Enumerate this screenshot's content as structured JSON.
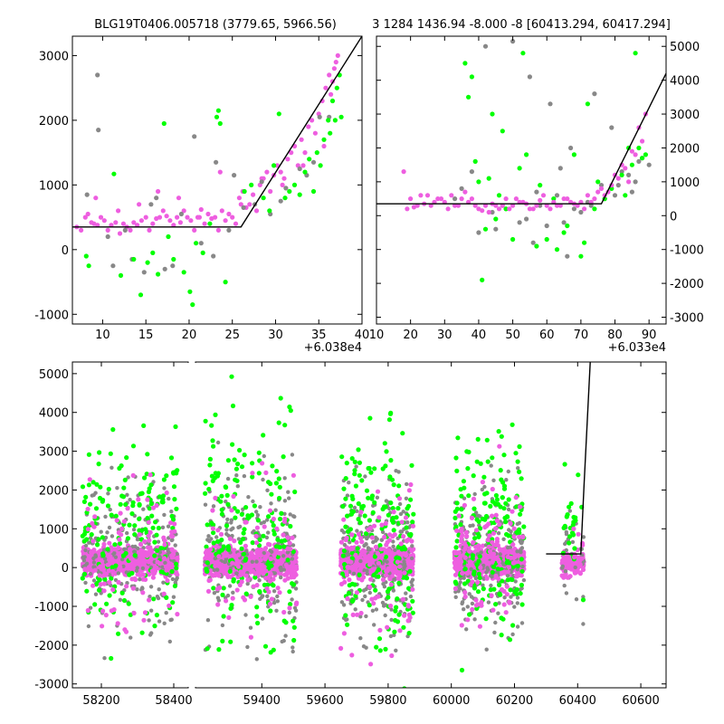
{
  "titles": {
    "left": "BLG19T0406.005718 (3779.65, 5966.56)",
    "right": "3 1284 1436.94 -8.000 -8 [60413.294, 60417.294]"
  },
  "colors": {
    "background": "#ffffff",
    "gray": "#888888",
    "green": "#00ff00",
    "magenta": "#ee5ee0",
    "model_line": "#000000"
  },
  "chart_data": [
    {
      "id": "top-left",
      "type": "scatter",
      "title": "BLG19T0406.005718 (3779.65, 5966.56)",
      "x_offset_label": "+6.038e4",
      "xlim": [
        6.5,
        40
      ],
      "ylim": [
        -1150,
        3300
      ],
      "xticks": [
        10,
        15,
        20,
        25,
        30,
        35,
        40
      ],
      "yticks": [
        -1000,
        0,
        1000,
        2000,
        3000
      ],
      "y_axis_side": "left",
      "model_line": {
        "x": [
          6.5,
          26,
          40
        ],
        "y": [
          350,
          350,
          3300
        ]
      },
      "series": [
        {
          "color_key": "magenta",
          "x": [
            7,
            7.5,
            8,
            8.3,
            8.7,
            9,
            9.4,
            9.8,
            10.2,
            10.6,
            11,
            11.5,
            12,
            12.4,
            12.8,
            13.2,
            13.6,
            14,
            14.5,
            15,
            15.4,
            15.8,
            16.2,
            16.6,
            17,
            17.4,
            17.8,
            18.2,
            18.6,
            19,
            19.4,
            19.8,
            20.2,
            20.6,
            21,
            21.4,
            21.8,
            22.2,
            22.6,
            23,
            23.4,
            23.8,
            24.2,
            24.6,
            25,
            25.4,
            25.8,
            26.2,
            26.6,
            27,
            27.4,
            27.8,
            28.2,
            28.6,
            29,
            29.4,
            29.8,
            30.2,
            30.6,
            31,
            31.4,
            31.8,
            32.2,
            32.6,
            33,
            33.4,
            33.8,
            34.2,
            34.6,
            35,
            35.4,
            35.8,
            36.2,
            36.6,
            37,
            9.2,
            11.8,
            14.2,
            16.4,
            18.8,
            21.2,
            23.6,
            26,
            28.4,
            30.8,
            33.2,
            35.6,
            36.8,
            37.2,
            36.4
          ],
          "y": [
            350,
            300,
            500,
            550,
            420,
            400,
            380,
            500,
            450,
            300,
            380,
            420,
            250,
            400,
            350,
            300,
            420,
            380,
            450,
            500,
            300,
            400,
            480,
            500,
            600,
            520,
            450,
            380,
            500,
            420,
            600,
            500,
            450,
            300,
            500,
            620,
            400,
            550,
            480,
            500,
            300,
            600,
            450,
            550,
            500,
            400,
            800,
            900,
            650,
            700,
            850,
            600,
            1000,
            1100,
            1200,
            900,
            1150,
            1300,
            1200,
            1100,
            1400,
            1500,
            1600,
            1300,
            1700,
            1500,
            1900,
            2000,
            1800,
            2100,
            2300,
            2500,
            2700,
            2600,
            2900,
            800,
            600,
            700,
            900,
            800,
            500,
            1200,
            700,
            1100,
            1000,
            1300,
            1600,
            2800,
            3000,
            2400
          ]
        },
        {
          "color_key": "gray",
          "x": [
            9.4,
            9.5,
            8.2,
            12.6,
            14.8,
            17.2,
            20.6,
            23.1,
            25.2,
            27.6,
            29.4,
            31.2,
            33.6,
            35.1,
            36.2,
            24.6,
            22.8,
            19.1,
            16.2,
            13.4,
            10.6,
            28.4,
            30.6,
            32.8,
            34.4,
            26.3,
            21.4,
            18.1,
            15.6,
            11.2
          ],
          "y": [
            2700,
            1850,
            850,
            300,
            -350,
            -300,
            1750,
            1350,
            1150,
            700,
            550,
            950,
            1150,
            2050,
            2050,
            300,
            -100,
            550,
            800,
            -150,
            200,
            1050,
            750,
            1250,
            1350,
            650,
            100,
            -250,
            700,
            -250
          ]
        },
        {
          "color_key": "green",
          "x": [
            8.1,
            8.4,
            11.3,
            12.1,
            13.6,
            14.4,
            15.2,
            15.8,
            16.4,
            17.1,
            17.6,
            18.2,
            19.4,
            20.1,
            20.4,
            20.8,
            21.6,
            22.4,
            23.2,
            23.4,
            23.6,
            24.2,
            26.4,
            27.2,
            28.6,
            29.3,
            29.8,
            30.4,
            31.1,
            31.6,
            32.2,
            32.8,
            33.4,
            33.9,
            34.4,
            34.8,
            35.2,
            35.6,
            36.1,
            36.6,
            37.1,
            37.4,
            37.6,
            36.9,
            36.3
          ],
          "y": [
            -100,
            -250,
            1170,
            -400,
            -150,
            -700,
            -200,
            -50,
            -380,
            1950,
            200,
            -150,
            -350,
            -650,
            -850,
            100,
            -50,
            400,
            2050,
            2150,
            1950,
            -500,
            900,
            1000,
            800,
            600,
            1300,
            2100,
            800,
            900,
            1000,
            850,
            1200,
            1400,
            900,
            1500,
            1300,
            1700,
            2000,
            2300,
            2500,
            2700,
            2050,
            2000,
            1800
          ]
        }
      ]
    },
    {
      "id": "top-right",
      "type": "scatter",
      "title": "3 1284 1436.94 -8.000 -8 [60413.294, 60417.294]",
      "x_offset_label": "+6.033e4",
      "xlim": [
        10,
        95
      ],
      "ylim": [
        -3200,
        5300
      ],
      "xticks": [
        10,
        20,
        30,
        40,
        50,
        60,
        70,
        80,
        90
      ],
      "yticks": [
        -3000,
        -2000,
        -1000,
        0,
        1000,
        2000,
        3000,
        4000,
        5000
      ],
      "y_axis_side": "right",
      "model_line": {
        "x": [
          10,
          76,
          95
        ],
        "y": [
          350,
          350,
          4200
        ]
      },
      "series": [
        {
          "color_key": "gray",
          "x": [
            42,
            50,
            55,
            61,
            64,
            67,
            74,
            79,
            85,
            38,
            45,
            52,
            58,
            63,
            70,
            76,
            82,
            88,
            33,
            48,
            56,
            66,
            72,
            80,
            86,
            90,
            35,
            44,
            54,
            60,
            68,
            77,
            84,
            40,
            47,
            57,
            65,
            73,
            81,
            87
          ],
          "y": [
            5000,
            5150,
            4100,
            3300,
            1400,
            2000,
            3600,
            2600,
            700,
            1300,
            -400,
            -200,
            300,
            600,
            100,
            900,
            1300,
            1700,
            500,
            200,
            -800,
            -1200,
            400,
            600,
            1000,
            1500,
            800,
            100,
            -100,
            -300,
            200,
            500,
            1200,
            -500,
            300,
            700,
            -200,
            300,
            900,
            1600
          ]
        },
        {
          "color_key": "green",
          "x": [
            36,
            37,
            38,
            40,
            41,
            43,
            44,
            46,
            48,
            50,
            53,
            54,
            57,
            60,
            63,
            65,
            68,
            70,
            72,
            75,
            77,
            79,
            82,
            84,
            86,
            87,
            88,
            89,
            85,
            83,
            42,
            45,
            52,
            62,
            66,
            71,
            58,
            47,
            39,
            74
          ],
          "y": [
            4500,
            3500,
            4100,
            1000,
            -1900,
            1100,
            3000,
            600,
            200,
            -700,
            4800,
            1800,
            -900,
            -700,
            -1000,
            -500,
            1800,
            -1200,
            3300,
            1000,
            500,
            800,
            1200,
            2000,
            4800,
            2000,
            1700,
            1800,
            1500,
            600,
            -400,
            -100,
            1400,
            500,
            -300,
            -800,
            900,
            2500,
            1600,
            200
          ]
        },
        {
          "color_key": "magenta",
          "x": [
            18,
            20,
            22,
            24,
            26,
            28,
            30,
            32,
            34,
            36,
            38,
            40,
            42,
            44,
            46,
            48,
            50,
            52,
            54,
            56,
            58,
            60,
            62,
            64,
            66,
            68,
            70,
            72,
            74,
            76,
            78,
            80,
            82,
            84,
            86,
            88,
            19,
            23,
            27,
            31,
            35,
            39,
            43,
            47,
            51,
            55,
            59,
            63,
            67,
            71,
            75,
            79,
            83,
            87,
            89,
            85,
            81,
            77,
            73,
            69,
            65,
            61,
            57,
            53,
            49,
            45,
            41,
            37,
            33,
            29,
            25,
            21
          ],
          "y": [
            1300,
            500,
            300,
            350,
            300,
            500,
            400,
            600,
            300,
            700,
            500,
            200,
            300,
            350,
            200,
            500,
            300,
            400,
            350,
            200,
            450,
            300,
            400,
            300,
            500,
            350,
            400,
            600,
            500,
            800,
            700,
            1200,
            1500,
            1000,
            1800,
            2200,
            200,
            600,
            400,
            200,
            500,
            300,
            100,
            300,
            500,
            200,
            600,
            300,
            400,
            200,
            700,
            900,
            1400,
            2600,
            3000,
            1900,
            1100,
            600,
            400,
            300,
            500,
            200,
            300,
            400,
            200,
            300,
            150,
            400,
            300,
            500,
            600,
            250
          ]
        }
      ]
    },
    {
      "id": "bottom",
      "type": "scatter",
      "xlim": [
        58120,
        60680
      ],
      "ylim": [
        -3100,
        5300
      ],
      "xticks_left": [
        58200,
        58400
      ],
      "xticks_right": [
        59400,
        59600,
        59800,
        60000,
        60200,
        60400,
        60600
      ],
      "yticks": [
        -3000,
        -2000,
        -1000,
        0,
        1000,
        2000,
        3000,
        4000,
        5000
      ],
      "x_break": [
        58430,
        59180
      ],
      "seasons": [
        {
          "x": [
            58148,
            58410
          ],
          "spread": 1200
        },
        {
          "x": [
            59220,
            59510
          ],
          "spread": 1400
        },
        {
          "x": [
            59650,
            59880
          ],
          "spread": 1400
        },
        {
          "x": [
            60010,
            60230
          ],
          "spread": 1300
        },
        {
          "x": [
            60350,
            60420
          ],
          "spread": 900
        }
      ],
      "model_line": {
        "x": [
          60300,
          60410,
          60420,
          60440
        ],
        "y": [
          350,
          350,
          2100,
          5300
        ]
      }
    }
  ]
}
